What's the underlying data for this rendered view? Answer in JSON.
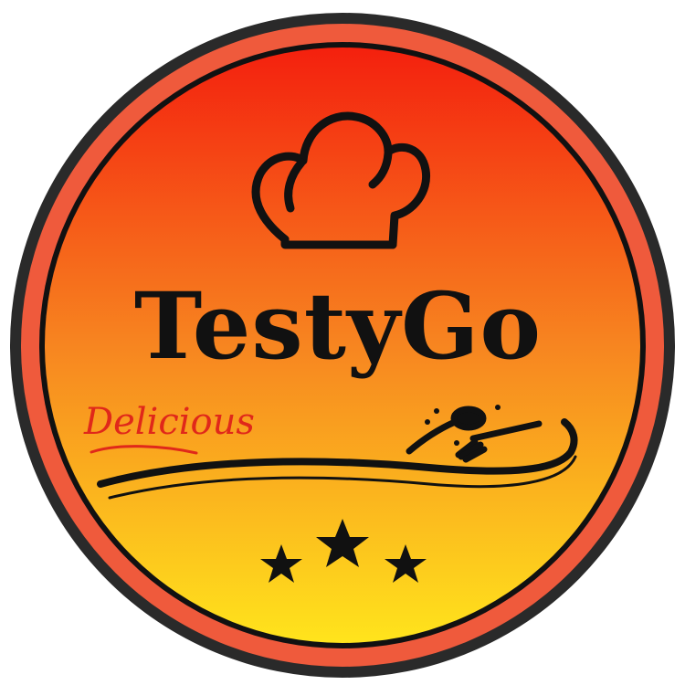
{
  "logo": {
    "brand_name": "TestyGo",
    "tagline": "Delicious",
    "rating_stars": 3,
    "colors": {
      "outer_ring": "#2a2a2a",
      "inner_ring": "#ef5a3c",
      "gradient_top": "#f4200e",
      "gradient_mid": "#f78520",
      "gradient_bottom": "#ffe41c",
      "ink": "#111111",
      "tagline": "#e0281a"
    },
    "icons": [
      "chef-hat-icon",
      "spoon-fork-icon",
      "star-icon"
    ]
  }
}
